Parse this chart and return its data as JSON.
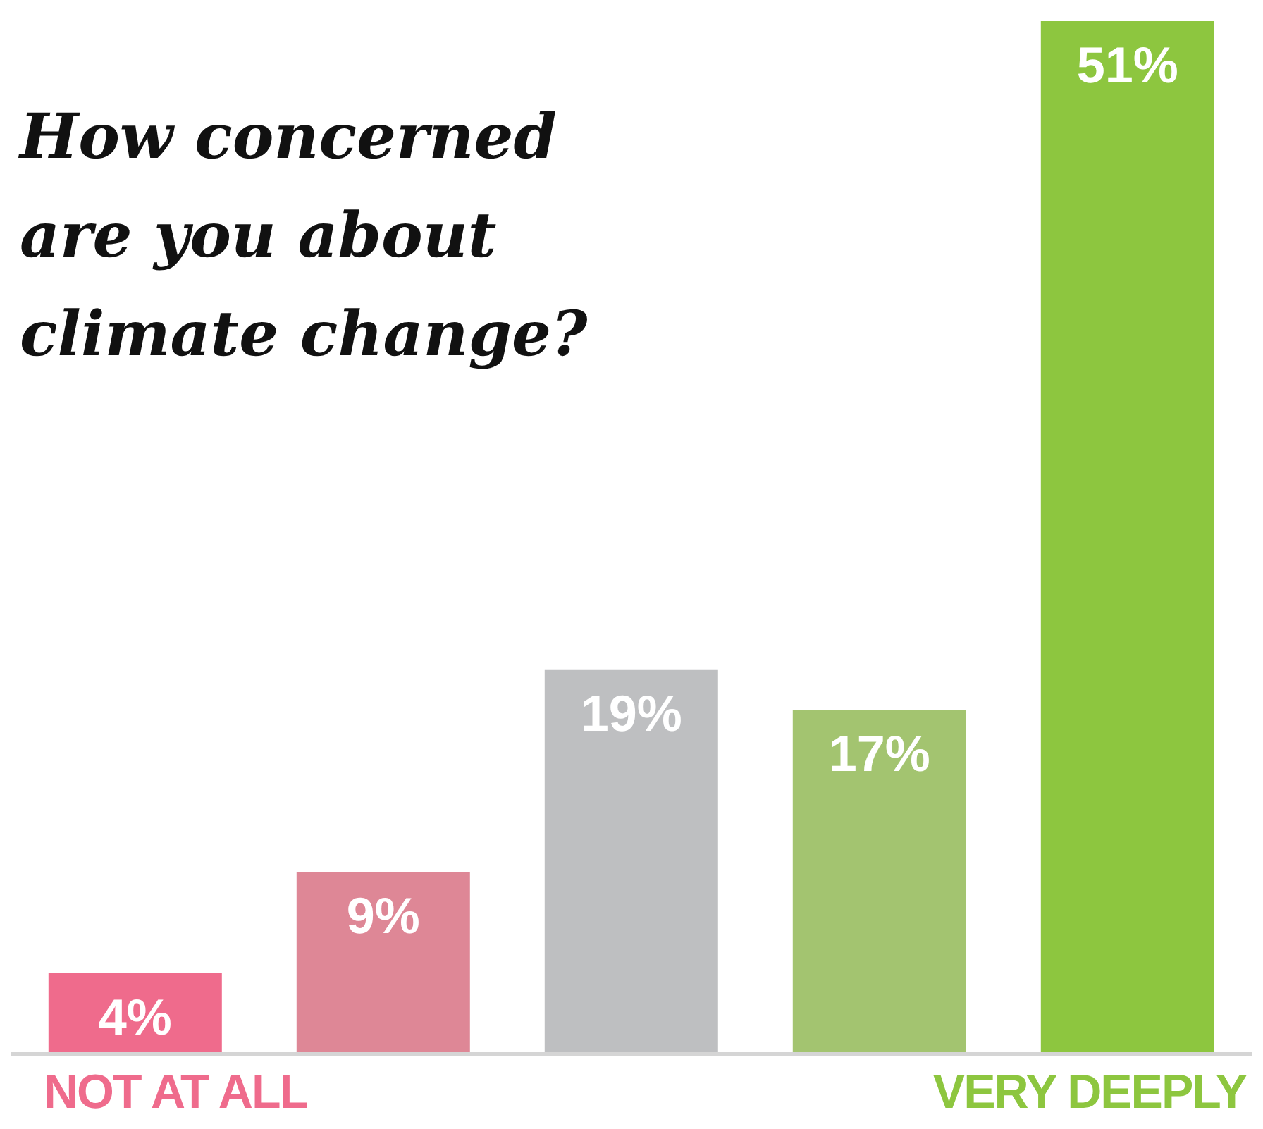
{
  "chart_data": {
    "type": "bar",
    "title": "How concerned are you about climate change?",
    "categories": [
      "NOT AT ALL",
      null,
      null,
      null,
      "VERY DEEPLY"
    ],
    "values": [
      4,
      9,
      19,
      17,
      51
    ],
    "colors": [
      "#ef6b8c",
      "#de8796",
      "#bebfc1",
      "#a3c470",
      "#8dc63f"
    ],
    "value_labels": [
      "4%",
      "9%",
      "19%",
      "17%",
      "51%"
    ],
    "ylim": [
      0,
      51
    ],
    "tick_labels": "x"
  }
}
